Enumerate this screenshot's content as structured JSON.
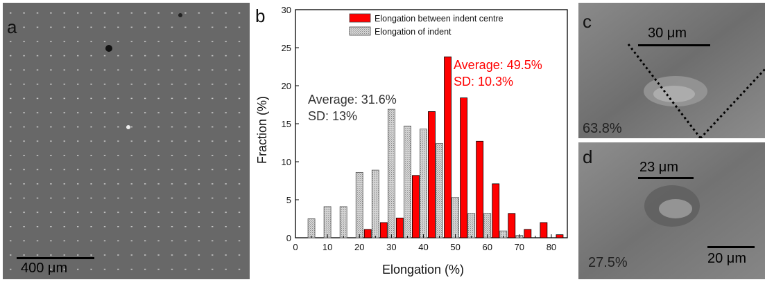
{
  "panel_a": {
    "label": "a",
    "scale_bar": "400 μm"
  },
  "panel_c": {
    "label": "c",
    "scale_bar": "30 μm",
    "percent": "63.8%"
  },
  "panel_d": {
    "label": "d",
    "scale_bar_top": "23 μm",
    "scale_bar_bottom": "20 μm",
    "percent": "27.5%"
  },
  "chart_data": {
    "type": "bar",
    "panel_label": "b",
    "xlabel": "Elongation (%)",
    "ylabel": "Fraction (%)",
    "xlim": [
      0,
      85
    ],
    "ylim": [
      0,
      30
    ],
    "xticks": [
      0,
      10,
      20,
      30,
      40,
      50,
      60,
      70,
      80
    ],
    "yticks": [
      0,
      5,
      10,
      15,
      20,
      25,
      30
    ],
    "legend_position": "top-right",
    "series": [
      {
        "name": "Elongation between indent centre",
        "color": "#ff0000",
        "x": [
          20,
          25,
          30,
          35,
          40,
          45,
          50,
          55,
          60,
          65,
          70,
          75,
          80
        ],
        "values": [
          1.1,
          2.0,
          2.6,
          8.2,
          16.6,
          23.8,
          18.4,
          12.7,
          7.1,
          3.2,
          1.1,
          2.0,
          0.4
        ]
      },
      {
        "name": "Elongation of indent",
        "color": "#cccccc",
        "x": [
          5,
          10,
          15,
          20,
          25,
          30,
          35,
          40,
          45,
          50,
          55,
          60,
          65,
          70
        ],
        "values": [
          2.5,
          4.1,
          4.1,
          8.6,
          8.9,
          16.9,
          14.7,
          14.3,
          12.4,
          5.3,
          3.2,
          3.2,
          0.9,
          0.3
        ]
      }
    ],
    "annotations": [
      {
        "lines": [
          "Average: 49.5%",
          "SD: 10.3%"
        ],
        "color": "#ff0000"
      },
      {
        "lines": [
          "Average: 31.6%",
          "SD: 13%"
        ],
        "color": "#333333"
      }
    ]
  }
}
